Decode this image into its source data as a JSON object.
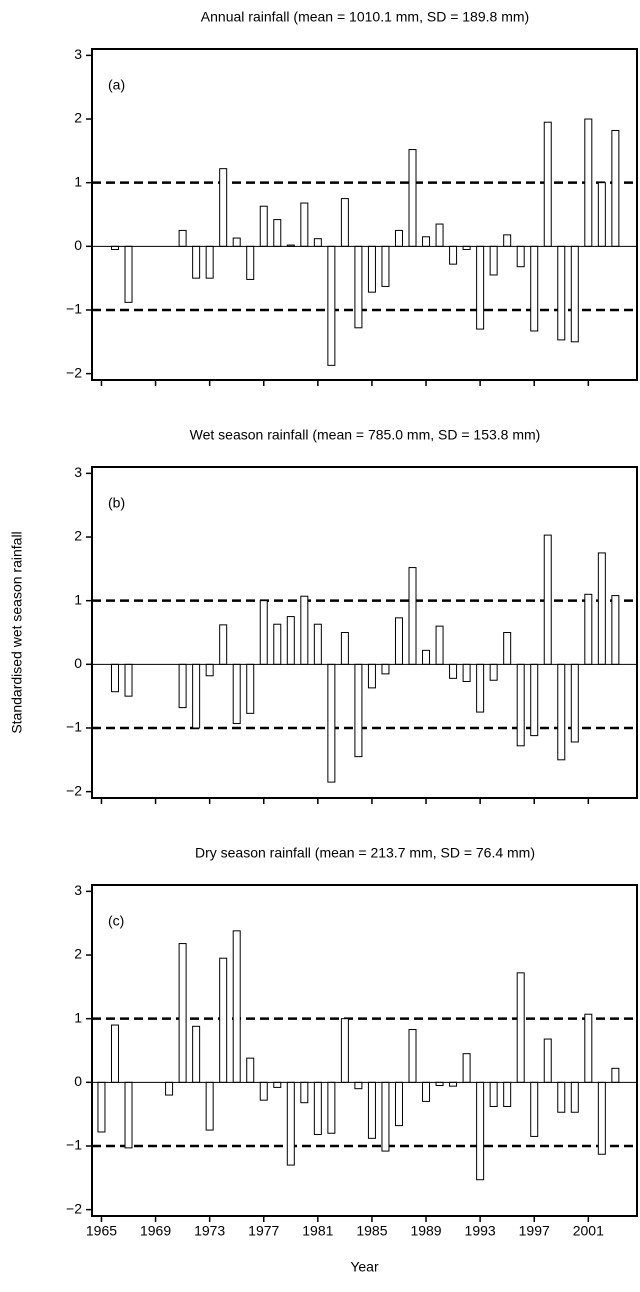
{
  "chart_data": [
    {
      "type": "bar",
      "title": "Annual rainfall (mean = 1010.1 mm, SD = 189.8 mm)",
      "panel_label": "(a)",
      "x": [
        1965,
        1966,
        1967,
        1968,
        1969,
        1970,
        1971,
        1972,
        1973,
        1974,
        1975,
        1976,
        1977,
        1978,
        1979,
        1980,
        1981,
        1982,
        1983,
        1984,
        1985,
        1986,
        1987,
        1988,
        1989,
        1990,
        1991,
        1992,
        1993,
        1994,
        1995,
        1996,
        1997,
        1998,
        1999,
        2000,
        2001,
        2002,
        2003
      ],
      "values": [
        null,
        -0.05,
        -0.88,
        null,
        null,
        null,
        0.25,
        -0.5,
        -0.5,
        1.22,
        0.13,
        -0.52,
        0.63,
        0.42,
        0.02,
        0.68,
        0.12,
        -1.87,
        0.75,
        -1.28,
        -0.72,
        -0.63,
        0.25,
        1.52,
        0.15,
        0.35,
        -0.28,
        -0.05,
        -1.3,
        -0.45,
        0.18,
        -0.32,
        -1.33,
        1.95,
        -1.47,
        -1.5,
        2.0,
        1.0,
        1.82
      ],
      "color": "#ffffff",
      "edgecolor": "#000000",
      "hlines": [
        1,
        -1
      ],
      "xlim": [
        1964.3,
        2004.6
      ],
      "xticks": [
        1965,
        1969,
        1973,
        1977,
        1981,
        1985,
        1989,
        1993,
        1997,
        2001
      ],
      "xtick_labels": false,
      "ylim": [
        -2.1,
        3.1
      ],
      "yticks": [
        {
          "value": -2,
          "label": "−2"
        },
        {
          "value": -1,
          "label": "−1"
        },
        0,
        1,
        2,
        3
      ]
    },
    {
      "type": "bar",
      "title": "Wet season rainfall (mean = 785.0 mm, SD = 153.8 mm)",
      "panel_label": "(b)",
      "ylabel": "Standardised wet season rainfall",
      "x": [
        1965,
        1966,
        1967,
        1968,
        1969,
        1970,
        1971,
        1972,
        1973,
        1974,
        1975,
        1976,
        1977,
        1978,
        1979,
        1980,
        1981,
        1982,
        1983,
        1984,
        1985,
        1986,
        1987,
        1988,
        1989,
        1990,
        1991,
        1992,
        1993,
        1994,
        1995,
        1996,
        1997,
        1998,
        1999,
        2000,
        2001,
        2002,
        2003
      ],
      "values": [
        null,
        -0.43,
        -0.5,
        null,
        null,
        null,
        -0.68,
        -1.0,
        -0.18,
        0.62,
        -0.93,
        -0.77,
        1.0,
        0.63,
        0.75,
        1.07,
        0.63,
        -1.85,
        0.5,
        -1.45,
        -0.37,
        -0.15,
        0.73,
        1.52,
        0.22,
        0.6,
        -0.22,
        -0.27,
        -0.75,
        -0.25,
        0.5,
        -1.28,
        -1.12,
        2.03,
        -1.5,
        -1.22,
        1.1,
        1.75,
        1.08
      ],
      "color": "#ffffff",
      "edgecolor": "#000000",
      "hlines": [
        1,
        -1
      ],
      "xlim": [
        1964.3,
        2004.6
      ],
      "xticks": [
        1965,
        1969,
        1973,
        1977,
        1981,
        1985,
        1989,
        1993,
        1997,
        2001
      ],
      "xtick_labels": false,
      "ylim": [
        -2.1,
        3.1
      ],
      "yticks": [
        {
          "value": -2,
          "label": "−2"
        },
        {
          "value": -1,
          "label": "−1"
        },
        0,
        1,
        2,
        3
      ]
    },
    {
      "type": "bar",
      "title": "Dry season rainfall (mean = 213.7 mm, SD = 76.4 mm)",
      "panel_label": "(c)",
      "xlabel": "Year",
      "x": [
        1965,
        1966,
        1967,
        1968,
        1969,
        1970,
        1971,
        1972,
        1973,
        1974,
        1975,
        1976,
        1977,
        1978,
        1979,
        1980,
        1981,
        1982,
        1983,
        1984,
        1985,
        1986,
        1987,
        1988,
        1989,
        1990,
        1991,
        1992,
        1993,
        1994,
        1995,
        1996,
        1997,
        1998,
        1999,
        2000,
        2001,
        2002,
        2003
      ],
      "values": [
        -0.78,
        0.9,
        -1.03,
        null,
        null,
        -0.2,
        2.18,
        0.88,
        -0.75,
        1.95,
        2.38,
        0.38,
        -0.28,
        -0.08,
        -1.3,
        -0.32,
        -0.82,
        -0.8,
        1.0,
        -0.1,
        -0.88,
        -1.08,
        -0.68,
        0.83,
        -0.3,
        -0.05,
        -0.06,
        0.45,
        -1.53,
        -0.38,
        -0.38,
        1.72,
        -0.85,
        0.68,
        -0.47,
        -0.47,
        1.07,
        -1.13,
        0.22
      ],
      "color": "#ffffff",
      "edgecolor": "#000000",
      "hlines": [
        1,
        -1
      ],
      "xlim": [
        1964.3,
        2004.6
      ],
      "xticks": [
        1965,
        1969,
        1973,
        1977,
        1981,
        1985,
        1989,
        1993,
        1997,
        2001
      ],
      "xtick_labels": true,
      "ylim": [
        -2.1,
        3.1
      ],
      "yticks": [
        {
          "value": -2,
          "label": "−2"
        },
        {
          "value": -1,
          "label": "−1"
        },
        0,
        1,
        2,
        3
      ]
    }
  ]
}
